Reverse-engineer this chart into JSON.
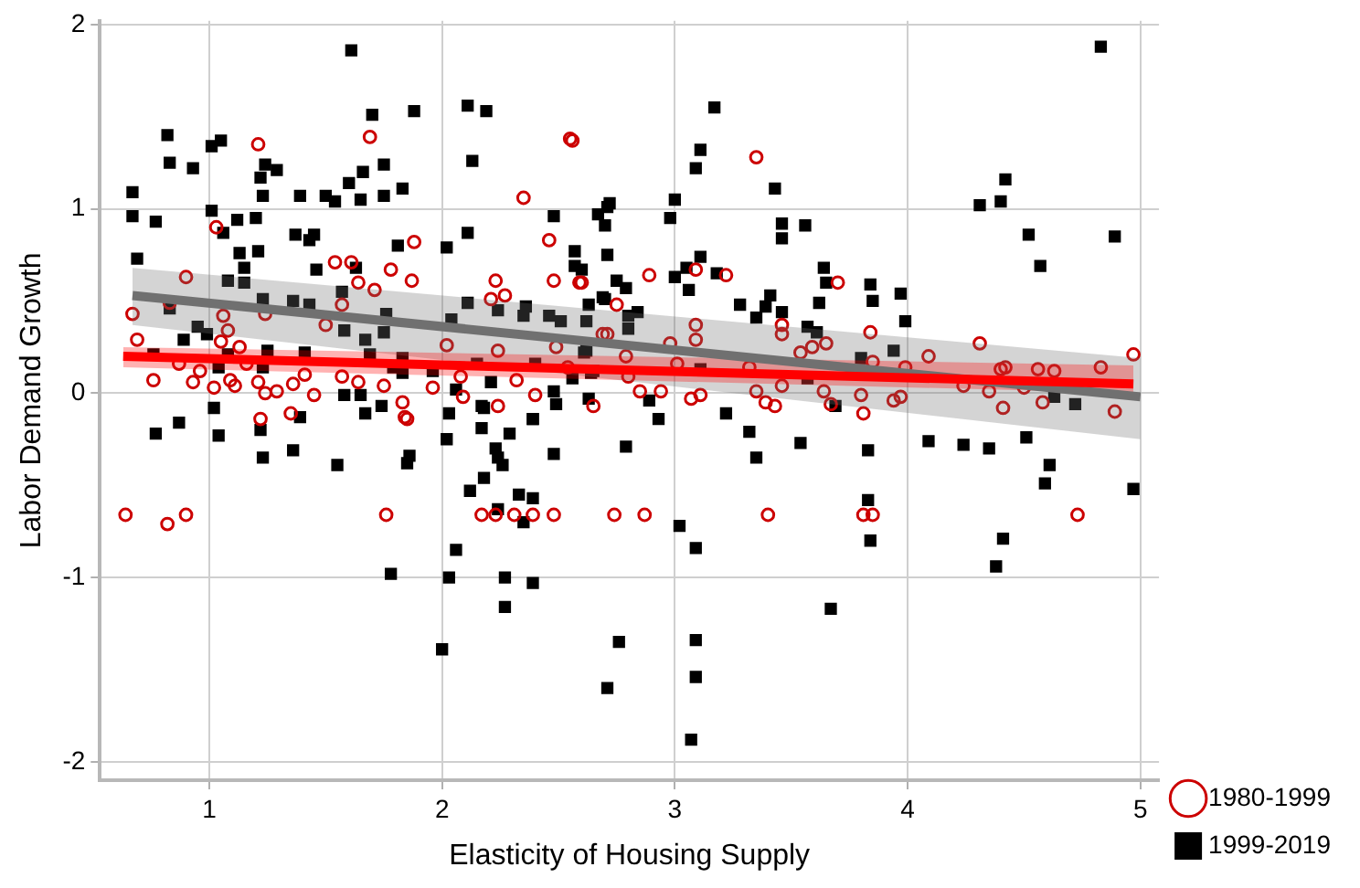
{
  "chart_data": {
    "type": "scatter",
    "xlabel": "Elasticity of Housing Supply",
    "ylabel": "Labor Demand Growth",
    "xlim": [
      0.53,
      5.08
    ],
    "ylim": [
      -2.1,
      2.02
    ],
    "xticks": [
      1,
      2,
      3,
      4,
      5
    ],
    "yticks": [
      -2,
      -1,
      0,
      1,
      2
    ],
    "grid": true,
    "legend": "right",
    "series": [
      {
        "name": "1980-1999",
        "color": "#cc0000",
        "marker": "circle",
        "x": [
          0.67,
          0.69,
          0.76,
          0.9,
          0.83,
          0.87,
          0.93,
          0.96,
          1.03,
          1.06,
          1.08,
          1.05,
          1.02,
          1.09,
          1.13,
          1.11,
          1.16,
          1.21,
          1.24,
          1.21,
          1.24,
          1.29,
          1.36,
          1.41,
          1.45,
          1.5,
          1.54,
          1.57,
          1.61,
          1.64,
          1.69,
          1.71,
          1.78,
          1.87,
          1.88,
          1.57,
          1.64,
          1.75,
          1.83,
          1.85,
          1.96,
          2.02,
          2.08,
          2.09,
          2.23,
          2.21,
          2.27,
          2.24,
          2.35,
          2.32,
          2.4,
          2.46,
          2.48,
          2.55,
          2.6,
          2.49,
          2.54,
          2.65,
          2.69,
          2.56,
          2.59,
          2.75,
          2.89,
          2.71,
          2.79,
          2.8,
          2.85,
          2.94,
          2.98,
          3.01,
          3.09,
          3.09,
          3.09,
          3.22,
          3.07,
          3.11,
          3.32,
          3.35,
          3.35,
          3.39,
          3.43,
          3.46,
          3.46,
          3.46,
          3.54,
          3.59,
          3.65,
          3.7,
          3.64,
          3.67,
          3.8,
          3.81,
          3.84,
          3.85,
          3.94,
          3.97,
          3.99,
          4.09,
          4.24,
          4.31,
          4.35,
          4.4,
          4.42,
          4.41,
          4.5,
          4.56,
          4.63,
          4.58,
          4.83,
          4.89,
          4.97,
          0.64,
          0.82,
          0.9,
          1.22,
          1.35,
          1.76,
          2.17,
          2.23,
          2.31,
          2.39,
          2.48,
          2.24,
          1.84,
          2.74,
          2.87,
          3.4,
          3.81,
          3.85,
          4.73
        ],
        "values": [
          0.43,
          0.29,
          0.07,
          0.63,
          0.49,
          0.16,
          0.06,
          0.12,
          0.9,
          0.42,
          0.34,
          0.28,
          0.03,
          0.07,
          0.25,
          0.04,
          0.16,
          1.35,
          0.43,
          0.06,
          0,
          0.01,
          0.05,
          0.1,
          -0.01,
          0.37,
          0.71,
          0.48,
          0.71,
          0.6,
          1.39,
          0.56,
          0.67,
          0.61,
          0.82,
          0.09,
          0.06,
          0.04,
          -0.05,
          -0.14,
          0.03,
          0.26,
          0.09,
          -0.02,
          0.61,
          0.51,
          0.53,
          0.23,
          1.06,
          0.07,
          -0.01,
          0.83,
          0.61,
          1.38,
          0.6,
          0.25,
          0.14,
          -0.07,
          0.32,
          1.37,
          0.6,
          0.48,
          0.64,
          0.32,
          0.2,
          0.09,
          0.01,
          0.01,
          0.27,
          0.16,
          0.37,
          0.29,
          0.67,
          0.64,
          -0.03,
          -0.01,
          0.14,
          1.28,
          0.01,
          -0.05,
          -0.07,
          0.04,
          0.37,
          0.32,
          0.22,
          0.25,
          0.27,
          0.6,
          0.01,
          -0.06,
          -0.01,
          -0.11,
          0.33,
          0.17,
          -0.04,
          -0.02,
          0.14,
          0.2,
          0.04,
          0.27,
          0.01,
          0.13,
          0.14,
          -0.08,
          0.03,
          0.13,
          0.12,
          -0.05,
          0.14,
          -0.1,
          0.21,
          -0.66,
          -0.71,
          -0.66,
          -0.14,
          -0.11,
          -0.66,
          -0.66,
          -0.66,
          -0.66,
          -0.66,
          -0.66,
          -0.07,
          -0.13,
          -0.66,
          -0.66,
          -0.66,
          -0.66,
          -0.66,
          -0.66
        ]
      },
      {
        "name": "1999-2019",
        "color": "#000000",
        "marker": "square",
        "x": [
          0.67,
          0.67,
          0.69,
          0.77,
          0.82,
          0.83,
          0.83,
          0.93,
          1.01,
          1.01,
          1.05,
          1.06,
          1.12,
          1.13,
          1.15,
          1.08,
          1.15,
          1.2,
          1.22,
          1.23,
          1.24,
          1.29,
          1.21,
          1.23,
          1.25,
          1.23,
          0.76,
          0.89,
          0.95,
          0.99,
          1.04,
          1.08,
          1.36,
          1.39,
          1.37,
          1.43,
          1.45,
          1.46,
          1.41,
          1.43,
          1.5,
          1.54,
          1.57,
          1.58,
          1.61,
          1.6,
          1.65,
          1.63,
          1.66,
          1.7,
          1.75,
          1.75,
          1.83,
          1.88,
          1.81,
          1.76,
          1.75,
          1.67,
          1.69,
          1.58,
          1.65,
          1.67,
          1.79,
          1.83,
          1.83,
          1.96,
          2.02,
          2.11,
          2.19,
          2.13,
          2.11,
          2.11,
          2.04,
          2.06,
          2.15,
          2.24,
          2.17,
          2.21,
          2.29,
          2.35,
          2.36,
          2.4,
          2.39,
          2.48,
          2.46,
          2.51,
          2.48,
          2.56,
          2.57,
          2.57,
          2.6,
          2.63,
          2.62,
          2.61,
          2.64,
          2.67,
          2.69,
          0.77,
          0.87,
          1.02,
          1.04,
          1.22,
          1.23,
          1.36,
          1.39,
          1.55,
          1.74,
          1.85,
          1.86,
          1.78,
          2,
          2.02,
          2.03,
          2.03,
          2.06,
          2.12,
          2.17,
          2.18,
          2.18,
          2.23,
          2.24,
          2.26,
          2.24,
          2.33,
          2.35,
          2.27,
          2.27,
          2.39,
          2.39,
          2.39,
          2.48,
          2.49,
          2.71,
          2.72,
          2.7,
          2.71,
          2.75,
          2.79,
          2.7,
          2.8,
          2.84,
          2.8,
          2.62,
          2.65,
          2.63,
          2.89,
          2.93,
          2.98,
          3,
          3.09,
          3.11,
          3.17,
          3.05,
          3.11,
          3,
          3.06,
          3.18,
          3.11,
          3.22,
          3.32,
          3.28,
          3.35,
          3.39,
          3.41,
          3.46,
          3.43,
          3.46,
          3.46,
          3.56,
          3.57,
          3.61,
          3.57,
          3.64,
          3.65,
          3.62,
          3.69,
          3.8,
          3.84,
          3.85,
          3.97,
          3.99,
          3.94,
          4.31,
          4.4,
          4.42,
          4.52,
          4.57,
          4.83,
          4.89,
          4.63,
          4.72,
          2.79,
          3.35,
          3.54,
          3.83,
          3.83,
          3.84,
          3.67,
          3.02,
          3.09,
          3.09,
          3.09,
          3.07,
          2.76,
          2.71,
          4.09,
          4.24,
          4.35,
          4.51,
          4.61,
          4.59,
          4.41,
          4.38,
          4.97
        ],
        "values": [
          1.09,
          0.96,
          0.73,
          0.93,
          1.4,
          1.25,
          0.46,
          1.22,
          0.99,
          1.34,
          1.37,
          0.87,
          0.94,
          0.76,
          0.68,
          0.61,
          0.6,
          0.95,
          1.17,
          1.07,
          1.24,
          1.21,
          0.77,
          0.51,
          0.23,
          0.14,
          0.21,
          0.29,
          0.36,
          0.32,
          0.14,
          0.21,
          0.5,
          1.07,
          0.86,
          0.83,
          0.86,
          0.67,
          0.22,
          0.48,
          1.07,
          1.04,
          0.55,
          0.34,
          1.86,
          1.14,
          1.05,
          0.68,
          1.2,
          1.51,
          1.07,
          1.24,
          1.11,
          1.53,
          0.8,
          0.43,
          0.33,
          0.29,
          0.21,
          -0.01,
          -0.01,
          -0.11,
          0.14,
          0.19,
          0.11,
          0.12,
          0.79,
          1.56,
          1.53,
          1.26,
          0.87,
          0.49,
          0.4,
          0.02,
          0.16,
          0.45,
          -0.07,
          0.06,
          -0.22,
          0.42,
          0.47,
          0.16,
          -0.14,
          0.96,
          0.42,
          0.39,
          0.01,
          0.08,
          0.77,
          0.69,
          0.67,
          0.48,
          0.39,
          0.22,
          0.11,
          0.97,
          0.52,
          -0.22,
          -0.16,
          -0.08,
          -0.23,
          -0.2,
          -0.35,
          -0.31,
          -0.13,
          -0.39,
          -0.07,
          -0.38,
          -0.34,
          -0.98,
          -1.39,
          -0.25,
          -0.11,
          -1,
          -0.85,
          -0.53,
          -0.19,
          -0.46,
          -0.08,
          -0.3,
          -0.35,
          -0.39,
          -0.63,
          -0.55,
          -0.7,
          -1,
          -1.16,
          -0.57,
          -1.03,
          -0.14,
          -0.33,
          -0.06,
          1.01,
          1.03,
          0.91,
          0.75,
          0.61,
          0.57,
          0.51,
          0.42,
          0.44,
          0.35,
          0.23,
          0.12,
          -0.03,
          -0.04,
          -0.14,
          0.95,
          1.05,
          1.22,
          1.32,
          1.55,
          0.68,
          0.74,
          0.63,
          0.56,
          0.65,
          0.13,
          -0.11,
          -0.21,
          0.48,
          0.41,
          0.47,
          0.53,
          0.44,
          1.11,
          0.92,
          0.84,
          0.91,
          0.36,
          0.33,
          0.08,
          0.68,
          0.6,
          0.49,
          -0.07,
          0.19,
          0.59,
          0.5,
          0.54,
          0.39,
          0.23,
          1.02,
          1.04,
          1.16,
          0.86,
          0.69,
          1.88,
          0.85,
          -0.02,
          -0.06,
          -0.29,
          -0.35,
          -0.27,
          -0.31,
          -0.58,
          -0.8,
          -1.17,
          -0.72,
          -0.84,
          -1.34,
          -1.54,
          -1.88,
          -1.35,
          -1.6,
          -0.26,
          -0.28,
          -0.3,
          -0.24,
          -0.39,
          -0.49,
          -0.79,
          -0.94,
          -0.52
        ]
      },
      {
        "type": "line",
        "color": "#ff0000",
        "marker": "none",
        "x": [
          0.63,
          4.97
        ],
        "values": [
          0.2,
          0.05
        ],
        "lower": [
          0.14,
          0
        ],
        "upper": [
          0.25,
          0.15
        ]
      },
      {
        "type": "line",
        "color": "#707070",
        "marker": "none",
        "x": [
          0.67,
          5
        ],
        "values": [
          0.53,
          -0.02
        ],
        "lower": [
          0.37,
          -0.25
        ],
        "upper": [
          0.68,
          0.19
        ]
      }
    ]
  }
}
